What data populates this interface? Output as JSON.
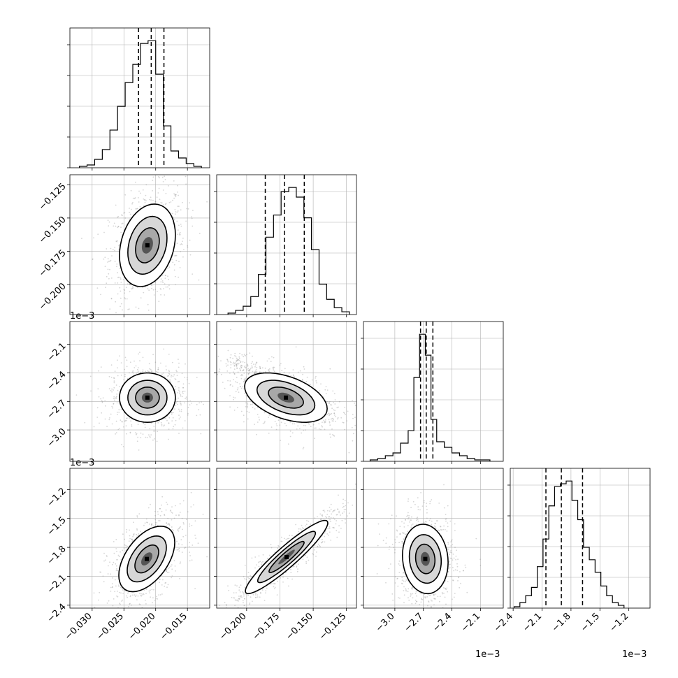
{
  "chart_data": [
    {
      "type": "histogram",
      "row": 0,
      "col": 0,
      "xlim": [
        -0.0335,
        -0.0115
      ],
      "bins": [
        -0.032,
        -0.0308,
        -0.0296,
        -0.0284,
        -0.0272,
        -0.026,
        -0.0248,
        -0.0236,
        -0.0224,
        -0.0212,
        -0.02,
        -0.0188,
        -0.0176,
        -0.0164,
        -0.0152,
        -0.014,
        -0.0128
      ],
      "counts": [
        1,
        2,
        6,
        13,
        27,
        44,
        61,
        74,
        89,
        91,
        67,
        30,
        12,
        7,
        3,
        1
      ],
      "quantiles": [
        -0.0227,
        -0.0207,
        -0.0187
      ]
    },
    {
      "type": "scatter_density",
      "row": 1,
      "col": 0,
      "x_param": 0,
      "y_param": 1,
      "xlim": [
        -0.0335,
        -0.0115
      ],
      "ylim": [
        -0.2225,
        -0.1175
      ],
      "center": [
        -0.0213,
        -0.1705
      ],
      "sd": [
        0.0022,
        0.0155
      ],
      "corr": 0.25
    },
    {
      "type": "histogram",
      "row": 1,
      "col": 1,
      "xlim": [
        -0.2225,
        -0.1175
      ],
      "bins": [
        -0.214,
        -0.2083,
        -0.2026,
        -0.1969,
        -0.1912,
        -0.1855,
        -0.1798,
        -0.1741,
        -0.1684,
        -0.1627,
        -0.157,
        -0.1513,
        -0.1456,
        -0.1399,
        -0.1342,
        -0.1285,
        -0.1228
      ],
      "counts": [
        1,
        3,
        6,
        13,
        29,
        56,
        72,
        89,
        92,
        85,
        70,
        47,
        22,
        11,
        5,
        2
      ],
      "quantiles": [
        -0.186,
        -0.1716,
        -0.1567
      ]
    },
    {
      "type": "scatter_density",
      "row": 2,
      "col": 0,
      "x_param": 0,
      "y_param": 2,
      "xlim": [
        -0.0335,
        -0.0115
      ],
      "ylim": [
        -3.33,
        -1.86
      ],
      "center": [
        -0.0213,
        -2.66
      ],
      "sd": [
        0.0022,
        0.13
      ],
      "corr": 0.0
    },
    {
      "type": "scatter_density",
      "row": 2,
      "col": 1,
      "x_param": 1,
      "y_param": 2,
      "xlim": [
        -0.2225,
        -0.1175
      ],
      "ylim": [
        -3.33,
        -1.86
      ],
      "center": [
        -0.1705,
        -2.66
      ],
      "sd": [
        0.0155,
        0.13
      ],
      "corr": -0.45,
      "tail": {
        "from": [
          -0.21,
          -2.25
        ],
        "to": [
          -0.19,
          -2.45
        ]
      }
    },
    {
      "type": "histogram",
      "row": 2,
      "col": 2,
      "xlim": [
        -3.33,
        -1.86
      ],
      "bins": [
        -3.26,
        -3.18,
        -3.1,
        -3.02,
        -2.94,
        -2.86,
        -2.8,
        -2.74,
        -2.68,
        -2.62,
        -2.56,
        -2.48,
        -2.4,
        -2.32,
        -2.24,
        -2.16,
        -2.08,
        -2.0
      ],
      "counts": [
        1,
        2,
        4,
        6,
        13,
        22,
        60,
        91,
        76,
        30,
        14,
        10,
        6,
        4,
        2,
        1,
        1
      ],
      "quantiles": [
        -2.73,
        -2.67,
        -2.6
      ]
    },
    {
      "type": "scatter_density",
      "row": 3,
      "col": 0,
      "x_param": 0,
      "y_param": 3,
      "xlim": [
        -0.0335,
        -0.0115
      ],
      "ylim": [
        -2.43,
        -0.98
      ],
      "center": [
        -0.0214,
        -1.92
      ],
      "sd": [
        0.0022,
        0.17
      ],
      "corr": 0.5
    },
    {
      "type": "scatter_density",
      "row": 3,
      "col": 1,
      "x_param": 1,
      "y_param": 3,
      "xlim": [
        -0.2225,
        -0.1175
      ],
      "ylim": [
        -2.43,
        -0.98
      ],
      "center": [
        -0.17,
        -1.9
      ],
      "sd": [
        0.0155,
        0.19
      ],
      "corr": 0.93
    },
    {
      "type": "scatter_density",
      "row": 3,
      "col": 2,
      "x_param": 2,
      "y_param": 3,
      "xlim": [
        -3.33,
        -1.86
      ],
      "ylim": [
        -2.43,
        -0.98
      ],
      "center": [
        -2.68,
        -1.92
      ],
      "sd": [
        0.12,
        0.18
      ],
      "corr": -0.1
    },
    {
      "type": "histogram",
      "row": 3,
      "col": 3,
      "xlim": [
        -2.43,
        -0.98
      ],
      "bins": [
        -2.39,
        -2.33,
        -2.27,
        -2.21,
        -2.15,
        -2.09,
        -2.03,
        -1.97,
        -1.91,
        -1.85,
        -1.79,
        -1.73,
        -1.67,
        -1.61,
        -1.55,
        -1.49,
        -1.43,
        -1.37,
        -1.31,
        -1.25
      ],
      "counts": [
        1,
        4,
        9,
        15,
        30,
        50,
        74,
        88,
        90,
        92,
        78,
        64,
        44,
        35,
        26,
        16,
        9,
        4,
        2
      ],
      "quantiles": [
        -2.06,
        -1.9,
        -1.68
      ]
    }
  ],
  "axes": {
    "bottom": [
      {
        "ticks": [
          "−0.030",
          "−0.025",
          "−0.020",
          "−0.015"
        ],
        "values": [
          -0.03,
          -0.025,
          -0.02,
          -0.015
        ],
        "offset": ""
      },
      {
        "ticks": [
          "−0.200",
          "−0.175",
          "−0.150",
          "−0.125"
        ],
        "values": [
          -0.2,
          -0.175,
          -0.15,
          -0.125
        ],
        "offset": ""
      },
      {
        "ticks": [
          "−3.0",
          "−2.7",
          "−2.4",
          "−2.1"
        ],
        "values": [
          -3.0,
          -2.7,
          -2.4,
          -2.1
        ],
        "offset": "1e−3"
      },
      {
        "ticks": [
          "−2.4",
          "−2.1",
          "−1.8",
          "−1.5",
          "−1.2"
        ],
        "values": [
          -2.4,
          -2.1,
          -1.8,
          -1.5,
          -1.2
        ],
        "offset": "1e−3"
      }
    ],
    "left": [
      null,
      {
        "ticks": [
          "−0.125",
          "−0.150",
          "−0.175",
          "−0.200"
        ],
        "values": [
          -0.125,
          -0.15,
          -0.175,
          -0.2
        ],
        "offset": ""
      },
      {
        "ticks": [
          "−2.1",
          "−2.4",
          "−2.7",
          "−3.0"
        ],
        "values": [
          -2.1,
          -2.4,
          -2.7,
          -3.0
        ],
        "offset": "1e−3"
      },
      {
        "ticks": [
          "−1.2",
          "−1.5",
          "−1.8",
          "−2.1",
          "−2.4"
        ],
        "values": [
          -1.2,
          -1.5,
          -1.8,
          -2.1,
          -2.4
        ],
        "offset": "1e−3"
      }
    ]
  },
  "grid": true
}
